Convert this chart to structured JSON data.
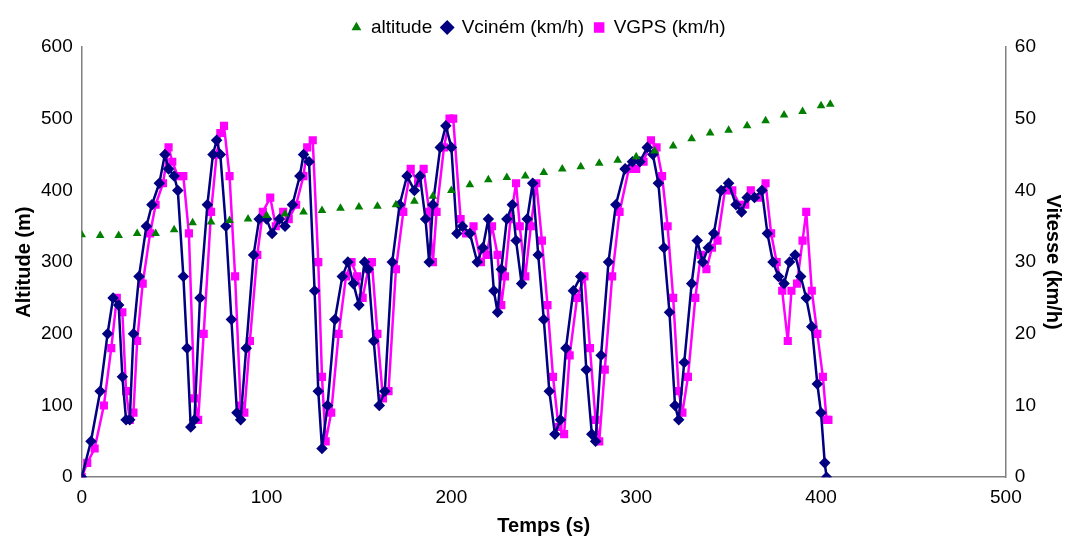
{
  "chart_data": {
    "type": "line",
    "xlabel": "Temps (s)",
    "ylabel": "Altitude (m)",
    "y2label": "Vitesse (km/h)",
    "xlim": [
      0,
      500
    ],
    "xticks": [
      0,
      100,
      200,
      300,
      400,
      500
    ],
    "ylim": [
      0,
      600
    ],
    "yticks": [
      0,
      100,
      200,
      300,
      400,
      500,
      600
    ],
    "y2lim": [
      0,
      60
    ],
    "y2ticks": [
      0,
      10,
      20,
      30,
      40,
      50,
      60
    ],
    "grid": false,
    "legend": "top",
    "series": [
      {
        "name": "altitude",
        "type": "scatter",
        "marker": "triangle",
        "color": "#007f00",
        "x": [
          0,
          10,
          20,
          30,
          40,
          50,
          60,
          70,
          80,
          90,
          100,
          110,
          120,
          130,
          140,
          150,
          160,
          170,
          180,
          190,
          200,
          210,
          220,
          230,
          240,
          250,
          260,
          270,
          280,
          290,
          300,
          310,
          320,
          330,
          340,
          350,
          360,
          370,
          380,
          390,
          400,
          405
        ],
        "values": [
          338,
          337,
          337,
          340,
          340,
          345,
          355,
          356,
          358,
          360,
          365,
          367,
          370,
          372,
          375,
          377,
          378,
          380,
          385,
          392,
          400,
          408,
          415,
          418,
          420,
          425,
          430,
          433,
          438,
          442,
          447,
          455,
          462,
          472,
          480,
          484,
          490,
          497,
          505,
          510,
          518,
          520
        ]
      },
      {
        "name": "Vciném (km/h)",
        "type": "line",
        "axis": "y2",
        "marker": "diamond",
        "color": "#000080",
        "x": [
          0,
          5,
          10,
          14,
          17,
          20,
          22,
          24,
          26,
          28,
          31,
          35,
          38,
          42,
          45,
          47,
          50,
          52,
          55,
          57,
          59,
          61,
          64,
          68,
          71,
          73,
          75,
          78,
          81,
          84,
          86,
          89,
          93,
          96,
          100,
          103,
          107,
          110,
          114,
          118,
          120,
          123,
          126,
          128,
          130,
          133,
          137,
          141,
          144,
          147,
          150,
          153,
          155,
          158,
          161,
          164,
          168,
          172,
          176,
          180,
          183,
          186,
          188,
          190,
          194,
          197,
          200,
          203,
          206,
          210,
          214,
          217,
          220,
          223,
          225,
          227,
          230,
          233,
          235,
          238,
          241,
          244,
          247,
          250,
          253,
          256,
          259,
          262,
          266,
          270,
          273,
          276,
          278,
          281,
          285,
          289,
          294,
          298,
          302,
          306,
          309,
          312,
          315,
          318,
          321,
          323,
          326,
          330,
          333,
          336,
          339,
          342,
          346,
          350,
          354,
          357,
          360,
          364,
          368,
          371,
          374,
          377,
          380,
          383,
          386,
          389,
          392,
          395,
          398,
          400,
          402,
          403
        ],
        "values": [
          0,
          5,
          12,
          20,
          25,
          24,
          14,
          8,
          8,
          20,
          28,
          35,
          38,
          41,
          45,
          43,
          42,
          40,
          28,
          18,
          7,
          8,
          25,
          38,
          45,
          47,
          45,
          35,
          22,
          9,
          8,
          18,
          31,
          36,
          36,
          34,
          36,
          35,
          38,
          42,
          45,
          44,
          26,
          12,
          4,
          10,
          22,
          28,
          30,
          27,
          24,
          30,
          29,
          19,
          10,
          12,
          30,
          38,
          42,
          40,
          42,
          36,
          30,
          38,
          46,
          49,
          46,
          34,
          35,
          34,
          30,
          32,
          36,
          26,
          23,
          29,
          36,
          38,
          33,
          27,
          36,
          41,
          31,
          22,
          12,
          6,
          8,
          18,
          26,
          28,
          15,
          6,
          5,
          17,
          30,
          38,
          43,
          44,
          44,
          46,
          45,
          41,
          32,
          23,
          10,
          8,
          16,
          27,
          33,
          30,
          32,
          34,
          40,
          41,
          38,
          37,
          39,
          39,
          40,
          34,
          30,
          28,
          27,
          30,
          31,
          28,
          25,
          21,
          13,
          9,
          2,
          0
        ]
      },
      {
        "name": "VGPS (km/h)",
        "type": "line",
        "axis": "y2",
        "marker": "square",
        "color": "#ff00ff",
        "x": [
          0,
          3,
          7,
          12,
          16,
          19,
          22,
          24,
          26,
          28,
          30,
          33,
          37,
          40,
          44,
          47,
          49,
          52,
          55,
          58,
          61,
          63,
          66,
          70,
          73,
          75,
          77,
          80,
          83,
          86,
          88,
          91,
          95,
          98,
          102,
          105,
          109,
          112,
          116,
          120,
          122,
          125,
          128,
          130,
          132,
          135,
          139,
          143,
          146,
          149,
          152,
          155,
          157,
          160,
          163,
          166,
          170,
          174,
          178,
          182,
          185,
          188,
          190,
          192,
          196,
          199,
          201,
          205,
          208,
          212,
          216,
          219,
          222,
          225,
          227,
          229,
          232,
          235,
          237,
          240,
          243,
          246,
          249,
          252,
          255,
          258,
          261,
          264,
          268,
          272,
          275,
          278,
          280,
          283,
          287,
          291,
          296,
          300,
          304,
          308,
          311,
          314,
          317,
          320,
          323,
          325,
          328,
          332,
          335,
          338,
          341,
          344,
          348,
          352,
          356,
          359,
          362,
          366,
          370,
          373,
          376,
          379,
          382,
          384,
          387,
          390,
          392,
          395,
          398,
          401,
          403,
          404
        ],
        "values": [
          0,
          2,
          4,
          10,
          18,
          25,
          23,
          12,
          8,
          9,
          19,
          27,
          34,
          38,
          41,
          46,
          44,
          42,
          42,
          34,
          11,
          8,
          20,
          37,
          45,
          48,
          49,
          42,
          28,
          10,
          9,
          19,
          31,
          37,
          39,
          35,
          37,
          36,
          38,
          42,
          46,
          47,
          30,
          14,
          5,
          9,
          20,
          28,
          30,
          28,
          25,
          29,
          30,
          20,
          11,
          12,
          29,
          37,
          43,
          41,
          43,
          37,
          30,
          37,
          46,
          50,
          50,
          36,
          34,
          35,
          30,
          31,
          35,
          31,
          24,
          28,
          36,
          41,
          35,
          28,
          35,
          41,
          33,
          24,
          14,
          7,
          6,
          17,
          25,
          28,
          18,
          8,
          5,
          15,
          28,
          37,
          43,
          43,
          44,
          47,
          46,
          42,
          35,
          25,
          12,
          9,
          14,
          25,
          31,
          29,
          32,
          33,
          40,
          40,
          38,
          38,
          40,
          39,
          41,
          34,
          30,
          26,
          19,
          26,
          27,
          33,
          37,
          26,
          20,
          14,
          8,
          8
        ]
      }
    ]
  }
}
